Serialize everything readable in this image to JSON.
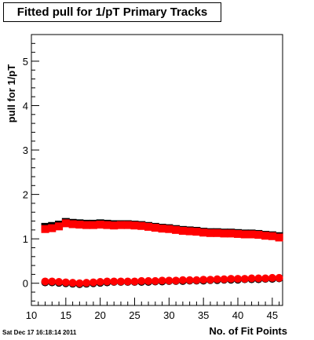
{
  "title": "Fitted pull for 1/pT Primary Tracks",
  "timestamp": "Sat Dec 17 16:18:14 2011",
  "chart_data": {
    "type": "scatter",
    "title": "Fitted pull for 1/pT Primary Tracks",
    "xlabel": "No. of Fit Points",
    "ylabel": "pull for 1/pT",
    "xlim": [
      10,
      46.5
    ],
    "ylim": [
      -0.5,
      5.6
    ],
    "xticks": [
      10,
      15,
      20,
      25,
      30,
      35,
      40,
      45
    ],
    "yticks": [
      0,
      1,
      2,
      3,
      4,
      5
    ],
    "series": [
      {
        "color": "#000000",
        "marker": "square",
        "x": [
          12,
          13,
          14,
          15,
          16,
          17,
          18,
          19,
          20,
          21,
          22,
          23,
          24,
          25,
          26,
          27,
          28,
          29,
          30,
          31,
          32,
          33,
          34,
          35,
          36,
          37,
          38,
          39,
          40,
          41,
          42,
          43,
          44,
          45,
          46
        ],
        "y": [
          1.27,
          1.29,
          1.32,
          1.38,
          1.36,
          1.35,
          1.34,
          1.34,
          1.35,
          1.34,
          1.33,
          1.33,
          1.33,
          1.32,
          1.31,
          1.29,
          1.27,
          1.25,
          1.24,
          1.22,
          1.2,
          1.19,
          1.18,
          1.16,
          1.15,
          1.15,
          1.14,
          1.14,
          1.13,
          1.12,
          1.12,
          1.11,
          1.09,
          1.08,
          1.06
        ]
      },
      {
        "color": "#ff0000",
        "marker": "square",
        "x": [
          12,
          13,
          14,
          15,
          16,
          17,
          18,
          19,
          20,
          21,
          22,
          23,
          24,
          25,
          26,
          27,
          28,
          29,
          30,
          31,
          32,
          33,
          34,
          35,
          36,
          37,
          38,
          39,
          40,
          41,
          42,
          43,
          44,
          45,
          46
        ],
        "y": [
          1.22,
          1.24,
          1.28,
          1.35,
          1.33,
          1.32,
          1.31,
          1.31,
          1.32,
          1.31,
          1.3,
          1.31,
          1.31,
          1.3,
          1.29,
          1.27,
          1.25,
          1.23,
          1.22,
          1.2,
          1.18,
          1.17,
          1.16,
          1.14,
          1.13,
          1.13,
          1.12,
          1.12,
          1.11,
          1.1,
          1.1,
          1.09,
          1.07,
          1.06,
          1.03
        ]
      },
      {
        "color": "#000000",
        "marker": "circle",
        "x": [
          12,
          13,
          14,
          15,
          16,
          17,
          18,
          19,
          20,
          21,
          22,
          23,
          24,
          25,
          26,
          27,
          28,
          29,
          30,
          31,
          32,
          33,
          34,
          35,
          36,
          37,
          38,
          39,
          40,
          41,
          42,
          43,
          44,
          45,
          46
        ],
        "y": [
          0.02,
          0.02,
          0.01,
          0.0,
          -0.01,
          -0.02,
          -0.01,
          0.0,
          0.01,
          0.02,
          0.03,
          0.03,
          0.03,
          0.03,
          0.03,
          0.03,
          0.04,
          0.04,
          0.05,
          0.05,
          0.05,
          0.06,
          0.06,
          0.06,
          0.07,
          0.07,
          0.08,
          0.08,
          0.08,
          0.09,
          0.09,
          0.09,
          0.1,
          0.1,
          0.11
        ]
      },
      {
        "color": "#ff0000",
        "marker": "circle",
        "x": [
          12,
          13,
          14,
          15,
          16,
          17,
          18,
          19,
          20,
          21,
          22,
          23,
          24,
          25,
          26,
          27,
          28,
          29,
          30,
          31,
          32,
          33,
          34,
          35,
          36,
          37,
          38,
          39,
          40,
          41,
          42,
          43,
          44,
          45,
          46
        ],
        "y": [
          0.04,
          0.04,
          0.03,
          0.02,
          0.01,
          0.0,
          0.01,
          0.02,
          0.03,
          0.04,
          0.04,
          0.04,
          0.04,
          0.04,
          0.05,
          0.05,
          0.05,
          0.06,
          0.06,
          0.06,
          0.07,
          0.07,
          0.07,
          0.08,
          0.08,
          0.09,
          0.09,
          0.1,
          0.1,
          0.1,
          0.11,
          0.11,
          0.11,
          0.12,
          0.12
        ]
      }
    ]
  }
}
